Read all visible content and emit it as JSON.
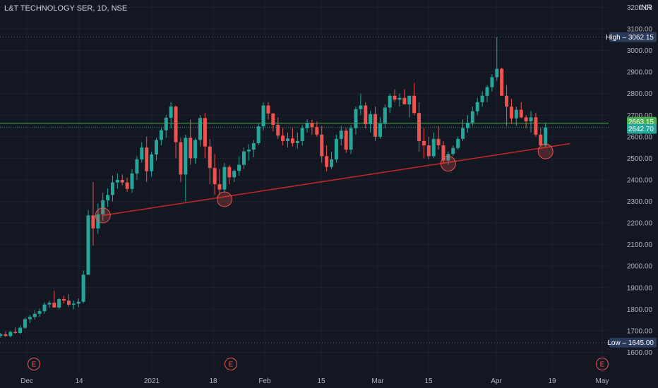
{
  "header": {
    "symbol_title": "L&T TECHNOLOGY SER, 1D, NSE",
    "currency": "INR"
  },
  "colors": {
    "up": "#26a69a",
    "down": "#ef5350",
    "trendline": "#c62828",
    "current_price": "#26a69a",
    "last_close": "#4caf50",
    "background": "#131722"
  },
  "chart_data": {
    "type": "candlestick",
    "title": "L&T TECHNOLOGY SER, 1D, NSE",
    "x_tick_labels": [
      "Dec",
      "14",
      "2021",
      "18",
      "Feb",
      "15",
      "Mar",
      "15",
      "Apr",
      "19",
      "May"
    ],
    "y_tick_labels": [
      "1600.00",
      "1700.00",
      "1800.00",
      "1900.00",
      "2000.00",
      "2100.00",
      "2200.00",
      "2300.00",
      "2400.00",
      "2500.00",
      "2600.00",
      "2700.00",
      "2800.00",
      "2900.00",
      "3000.00",
      "3100.00",
      "3200.00"
    ],
    "ylim": [
      1560,
      3220
    ],
    "high": {
      "label": "High",
      "value": "3062.15"
    },
    "low": {
      "label": "Low",
      "value": "1645.00"
    },
    "last_price_badges": [
      {
        "value": "2663.15",
        "color": "#4caf50"
      },
      {
        "value": "2642.70",
        "color": "#26a69a"
      }
    ],
    "trendline": {
      "from_index": 21,
      "from_price": 2235,
      "to_index": 117,
      "to_price": 2568
    },
    "touch_points": [
      {
        "index": 21,
        "price": 2235
      },
      {
        "index": 46,
        "price": 2310
      },
      {
        "index": 92,
        "price": 2475
      },
      {
        "index": 112,
        "price": 2532
      }
    ],
    "event_markers": [
      "E",
      "E",
      "E"
    ],
    "candles": [
      [
        1677,
        1690,
        1668,
        1684
      ],
      [
        1684,
        1697,
        1672,
        1676
      ],
      [
        1676,
        1701,
        1670,
        1695
      ],
      [
        1695,
        1716,
        1686,
        1690
      ],
      [
        1690,
        1725,
        1685,
        1714
      ],
      [
        1714,
        1762,
        1709,
        1754
      ],
      [
        1754,
        1774,
        1736,
        1764
      ],
      [
        1764,
        1795,
        1752,
        1779
      ],
      [
        1779,
        1803,
        1765,
        1791
      ],
      [
        1791,
        1832,
        1779,
        1822
      ],
      [
        1822,
        1840,
        1806,
        1830
      ],
      [
        1830,
        1885,
        1812,
        1808
      ],
      [
        1808,
        1852,
        1800,
        1847
      ],
      [
        1847,
        1862,
        1826,
        1840
      ],
      [
        1840,
        1870,
        1812,
        1821
      ],
      [
        1821,
        1840,
        1800,
        1826
      ],
      [
        1826,
        1850,
        1810,
        1835
      ],
      [
        1835,
        1980,
        1828,
        1960
      ],
      [
        1960,
        2260,
        1960,
        2235
      ],
      [
        2235,
        2390,
        2095,
        2175
      ],
      [
        2175,
        2290,
        2150,
        2240
      ],
      [
        2240,
        2340,
        2210,
        2305
      ],
      [
        2305,
        2360,
        2275,
        2330
      ],
      [
        2330,
        2420,
        2300,
        2388
      ],
      [
        2388,
        2430,
        2360,
        2400
      ],
      [
        2400,
        2425,
        2375,
        2388
      ],
      [
        2388,
        2410,
        2345,
        2358
      ],
      [
        2358,
        2450,
        2340,
        2430
      ],
      [
        2430,
        2510,
        2400,
        2495
      ],
      [
        2495,
        2575,
        2480,
        2550
      ],
      [
        2550,
        2600,
        2390,
        2440
      ],
      [
        2440,
        2530,
        2415,
        2518
      ],
      [
        2518,
        2595,
        2490,
        2585
      ],
      [
        2585,
        2640,
        2560,
        2630
      ],
      [
        2630,
        2700,
        2595,
        2688
      ],
      [
        2688,
        2760,
        2640,
        2740
      ],
      [
        2740,
        2745,
        2500,
        2575
      ],
      [
        2575,
        2595,
        2390,
        2425
      ],
      [
        2425,
        2610,
        2300,
        2595
      ],
      [
        2595,
        2680,
        2470,
        2500
      ],
      [
        2500,
        2595,
        2475,
        2585
      ],
      [
        2585,
        2700,
        2555,
        2687
      ],
      [
        2687,
        2710,
        2500,
        2555
      ],
      [
        2555,
        2590,
        2380,
        2455
      ],
      [
        2455,
        2520,
        2330,
        2380
      ],
      [
        2380,
        2450,
        2330,
        2355
      ],
      [
        2355,
        2478,
        2340,
        2460
      ],
      [
        2460,
        2470,
        2380,
        2412
      ],
      [
        2412,
        2450,
        2390,
        2442
      ],
      [
        2442,
        2510,
        2420,
        2470
      ],
      [
        2470,
        2550,
        2450,
        2532
      ],
      [
        2532,
        2565,
        2490,
        2540
      ],
      [
        2540,
        2585,
        2505,
        2570
      ],
      [
        2570,
        2660,
        2560,
        2648
      ],
      [
        2648,
        2760,
        2630,
        2745
      ],
      [
        2745,
        2760,
        2680,
        2708
      ],
      [
        2708,
        2710,
        2625,
        2655
      ],
      [
        2655,
        2690,
        2590,
        2605
      ],
      [
        2605,
        2640,
        2560,
        2580
      ],
      [
        2580,
        2620,
        2550,
        2592
      ],
      [
        2592,
        2640,
        2555,
        2570
      ],
      [
        2570,
        2620,
        2545,
        2580
      ],
      [
        2580,
        2655,
        2560,
        2640
      ],
      [
        2640,
        2680,
        2620,
        2665
      ],
      [
        2665,
        2680,
        2610,
        2645
      ],
      [
        2645,
        2670,
        2600,
        2610
      ],
      [
        2610,
        2650,
        2480,
        2510
      ],
      [
        2510,
        2560,
        2440,
        2460
      ],
      [
        2460,
        2530,
        2450,
        2495
      ],
      [
        2495,
        2610,
        2480,
        2590
      ],
      [
        2590,
        2650,
        2560,
        2628
      ],
      [
        2628,
        2640,
        2525,
        2540
      ],
      [
        2540,
        2655,
        2520,
        2640
      ],
      [
        2640,
        2740,
        2610,
        2728
      ],
      [
        2728,
        2800,
        2700,
        2745
      ],
      [
        2745,
        2760,
        2640,
        2658
      ],
      [
        2658,
        2720,
        2620,
        2705
      ],
      [
        2705,
        2740,
        2580,
        2600
      ],
      [
        2600,
        2690,
        2590,
        2660
      ],
      [
        2660,
        2750,
        2640,
        2735
      ],
      [
        2735,
        2800,
        2710,
        2790
      ],
      [
        2790,
        2820,
        2760,
        2772
      ],
      [
        2772,
        2800,
        2740,
        2780
      ],
      [
        2780,
        2820,
        2755,
        2750
      ],
      [
        2750,
        2775,
        2690,
        2790
      ],
      [
        2790,
        2850,
        2700,
        2710
      ],
      [
        2710,
        2760,
        2530,
        2580
      ],
      [
        2580,
        2640,
        2500,
        2560
      ],
      [
        2560,
        2600,
        2495,
        2510
      ],
      [
        2510,
        2620,
        2500,
        2590
      ],
      [
        2590,
        2650,
        2540,
        2560
      ],
      [
        2560,
        2580,
        2480,
        2490
      ],
      [
        2490,
        2530,
        2470,
        2520
      ],
      [
        2520,
        2560,
        2510,
        2548
      ],
      [
        2548,
        2600,
        2540,
        2590
      ],
      [
        2590,
        2680,
        2580,
        2640
      ],
      [
        2640,
        2700,
        2620,
        2665
      ],
      [
        2665,
        2740,
        2650,
        2718
      ],
      [
        2718,
        2780,
        2700,
        2760
      ],
      [
        2760,
        2810,
        2740,
        2790
      ],
      [
        2790,
        2840,
        2760,
        2830
      ],
      [
        2830,
        2890,
        2810,
        2876
      ],
      [
        2876,
        3062,
        2860,
        2915
      ],
      [
        2915,
        2920,
        2800,
        2790
      ],
      [
        2790,
        2840,
        2650,
        2740
      ],
      [
        2740,
        2775,
        2660,
        2685
      ],
      [
        2685,
        2740,
        2650,
        2725
      ],
      [
        2725,
        2760,
        2685,
        2690
      ],
      [
        2690,
        2700,
        2640,
        2672
      ],
      [
        2672,
        2720,
        2620,
        2690
      ],
      [
        2690,
        2710,
        2600,
        2610
      ],
      [
        2610,
        2640,
        2555,
        2560
      ],
      [
        2560,
        2666,
        2550,
        2642
      ]
    ]
  }
}
